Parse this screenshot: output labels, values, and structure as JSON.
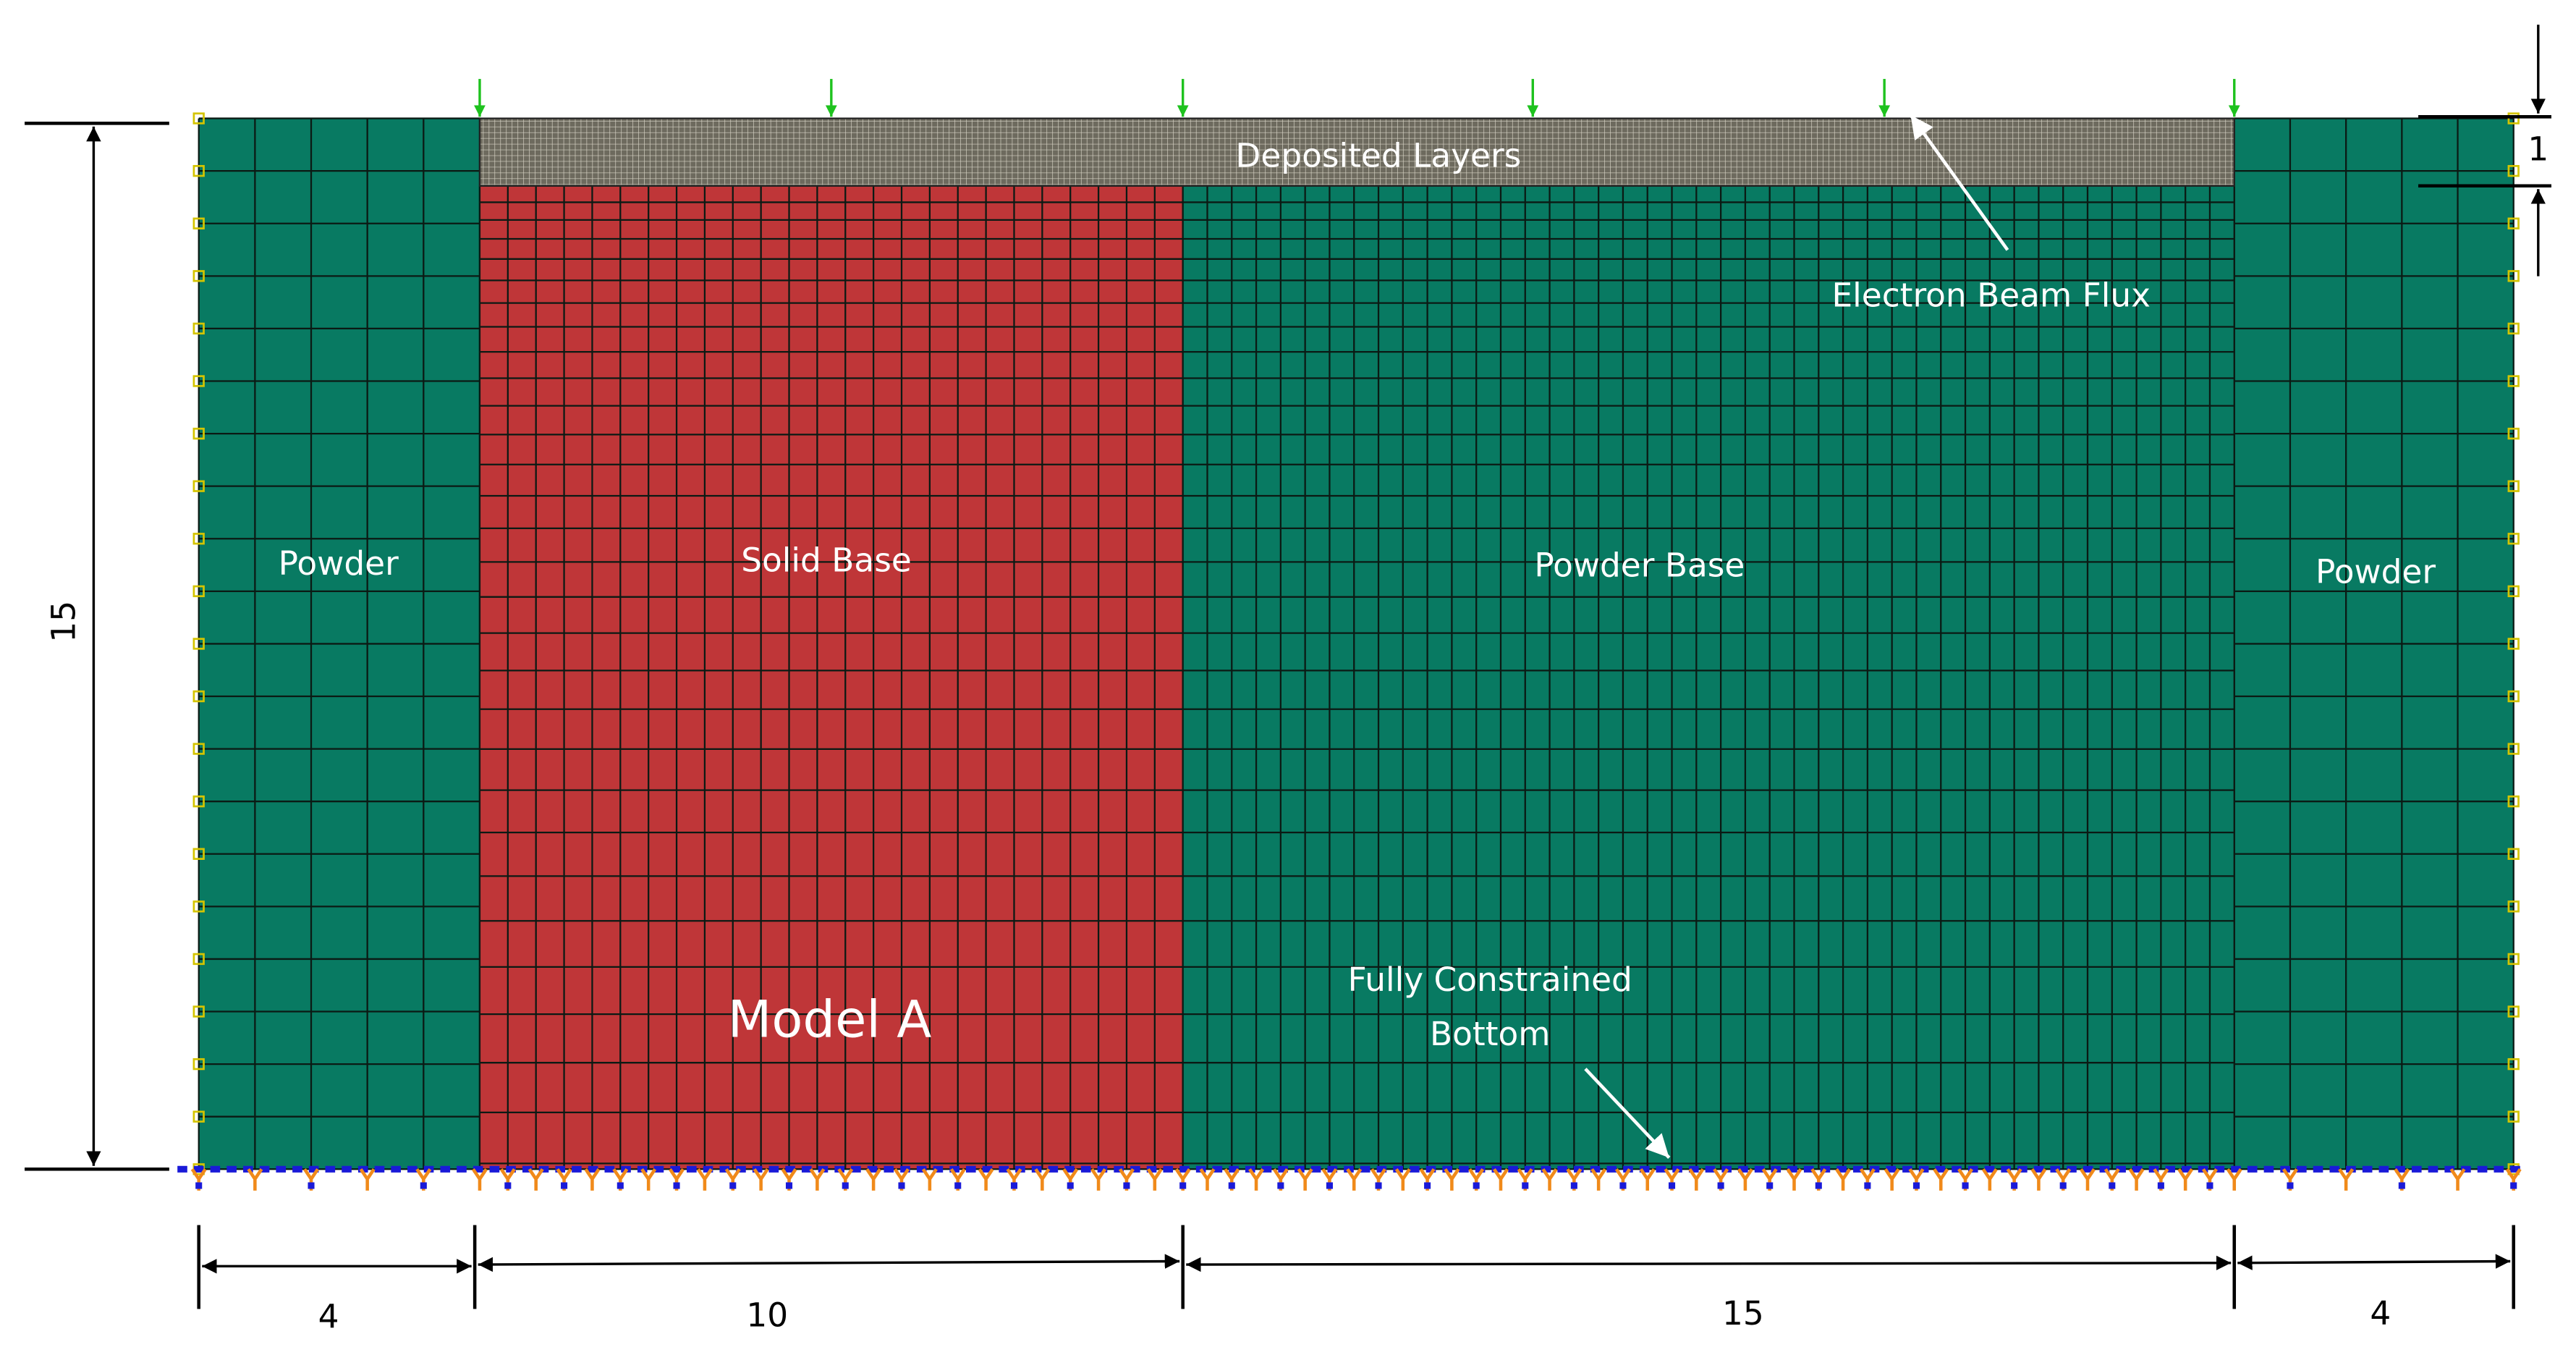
{
  "regions": [
    {
      "label": "Powder"
    },
    {
      "label": "Solid Base"
    },
    {
      "label": "Powder Base"
    },
    {
      "label": "Powder"
    }
  ],
  "deposited_layers": "Deposited Layers",
  "model": "Model A",
  "annotations": {
    "electron_beam_flux": "Electron Beam Flux",
    "bottom": [
      "Fully Constrained",
      "Bottom"
    ]
  },
  "dimensions": {
    "height": 15,
    "layer_thickness": 1,
    "widths": [
      4,
      10,
      15,
      4
    ]
  }
}
